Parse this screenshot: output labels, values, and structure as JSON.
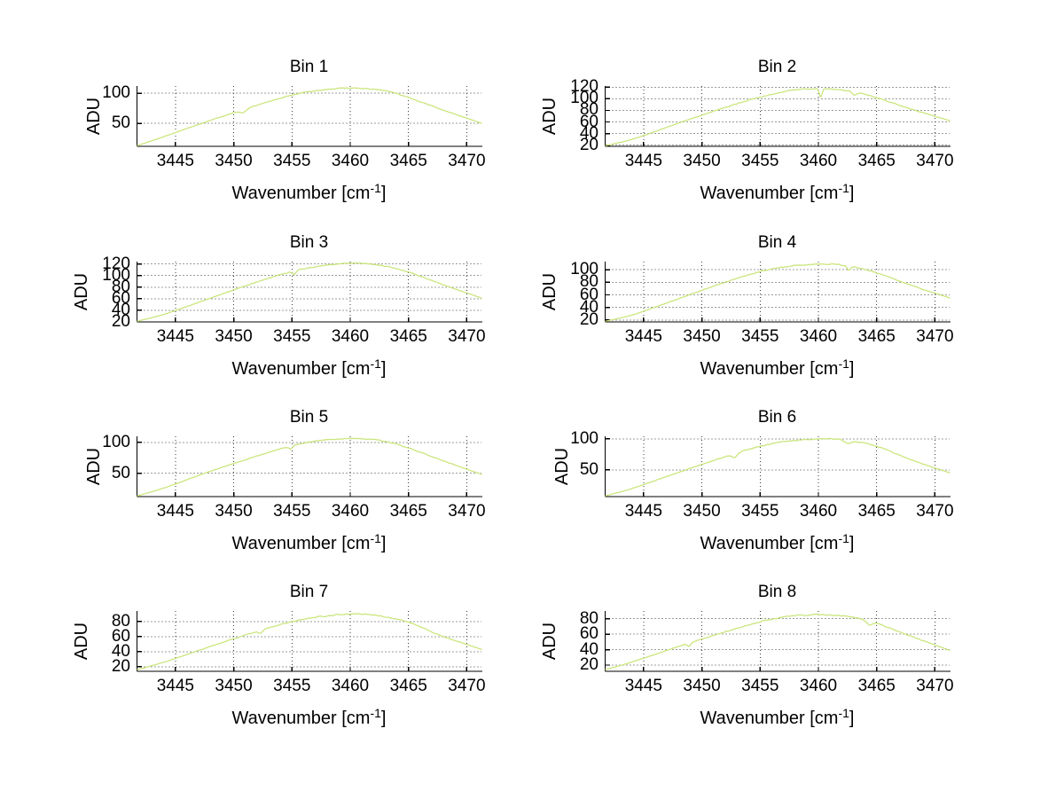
{
  "figure": {
    "background": "#ffffff",
    "axis_color": "#000000",
    "grid_color": "#3a3a3a",
    "panel_count": 8
  },
  "chart_data": [
    {
      "type": "line",
      "title": "Bin 1",
      "ylabel": "ADU",
      "xlabel_parts": {
        "base": "Wavenumber [cm",
        "sup": "-1",
        "end": "]"
      },
      "xlim": [
        3441.7,
        3471.3
      ],
      "ylim": [
        12,
        112
      ],
      "xticks": [
        3445,
        3450,
        3455,
        3460,
        3465,
        3470
      ],
      "yticks": [
        50,
        100
      ],
      "grid": true,
      "line_color": "#cbe57d",
      "anchors": {
        "x": [
          3441.7,
          3444,
          3448,
          3452,
          3455,
          3457,
          3459,
          3461,
          3463,
          3465,
          3468,
          3471.3
        ],
        "y": [
          13,
          28,
          55,
          80,
          97,
          104,
          108,
          108,
          104,
          93,
          72,
          50
        ]
      },
      "dips": [
        {
          "x": 3450.8,
          "depth": 5,
          "width": 0.35
        }
      ],
      "noise_amp": 1.3,
      "seed": 1
    },
    {
      "type": "line",
      "title": "Bin 2",
      "ylabel": "ADU",
      "xlabel_parts": {
        "base": "Wavenumber [cm",
        "sup": "-1",
        "end": "]"
      },
      "xlim": [
        3441.7,
        3471.3
      ],
      "ylim": [
        18,
        122
      ],
      "xticks": [
        3445,
        3450,
        3455,
        3460,
        3465,
        3470
      ],
      "yticks": [
        20,
        40,
        60,
        80,
        100,
        120
      ],
      "grid": true,
      "line_color": "#cbe57d",
      "anchors": {
        "x": [
          3441.7,
          3444,
          3448,
          3452,
          3455,
          3457,
          3459,
          3461,
          3463,
          3465,
          3468,
          3471.3
        ],
        "y": [
          19,
          30,
          58,
          85,
          103,
          112,
          117,
          117,
          112,
          102,
          82,
          62
        ]
      },
      "dips": [
        {
          "x": 3460.2,
          "depth": 14,
          "width": 0.18
        },
        {
          "x": 3463.1,
          "depth": 5,
          "width": 0.25
        }
      ],
      "noise_amp": 1.4,
      "seed": 2
    },
    {
      "type": "line",
      "title": "Bin 3",
      "ylabel": "ADU",
      "xlabel_parts": {
        "base": "Wavenumber [cm",
        "sup": "-1",
        "end": "]"
      },
      "xlim": [
        3441.7,
        3471.3
      ],
      "ylim": [
        20,
        124
      ],
      "xticks": [
        3445,
        3450,
        3455,
        3460,
        3465,
        3470
      ],
      "yticks": [
        20,
        40,
        60,
        80,
        100,
        120
      ],
      "grid": true,
      "line_color": "#cbe57d",
      "anchors": {
        "x": [
          3441.7,
          3444,
          3448,
          3452,
          3455,
          3457,
          3459,
          3461,
          3463,
          3465,
          3468,
          3471.3
        ],
        "y": [
          21,
          33,
          61,
          89,
          107,
          115,
          120,
          121,
          116,
          106,
          84,
          61
        ]
      },
      "dips": [
        {
          "x": 3455.2,
          "depth": 6,
          "width": 0.2
        }
      ],
      "noise_amp": 1.4,
      "seed": 3
    },
    {
      "type": "line",
      "title": "Bin 4",
      "ylabel": "ADU",
      "xlabel_parts": {
        "base": "Wavenumber [cm",
        "sup": "-1",
        "end": "]"
      },
      "xlim": [
        3441.7,
        3471.3
      ],
      "ylim": [
        17,
        113
      ],
      "xticks": [
        3445,
        3450,
        3455,
        3460,
        3465,
        3470
      ],
      "yticks": [
        20,
        40,
        60,
        80,
        100
      ],
      "grid": true,
      "line_color": "#cbe57d",
      "anchors": {
        "x": [
          3441.7,
          3444,
          3448,
          3452,
          3455,
          3457,
          3459,
          3461,
          3463,
          3465,
          3468,
          3471.3
        ],
        "y": [
          18,
          28,
          54,
          80,
          97,
          104,
          108,
          109,
          105,
          95,
          75,
          55
        ]
      },
      "dips": [
        {
          "x": 3462.6,
          "depth": 7,
          "width": 0.22
        }
      ],
      "noise_amp": 1.3,
      "seed": 4
    },
    {
      "type": "line",
      "title": "Bin 5",
      "ylabel": "ADU",
      "xlabel_parts": {
        "base": "Wavenumber [cm",
        "sup": "-1",
        "end": "]"
      },
      "xlim": [
        3441.7,
        3471.3
      ],
      "ylim": [
        12,
        110
      ],
      "xticks": [
        3445,
        3450,
        3455,
        3460,
        3465,
        3470
      ],
      "yticks": [
        50,
        100
      ],
      "grid": true,
      "line_color": "#cbe57d",
      "anchors": {
        "x": [
          3441.7,
          3444,
          3448,
          3452,
          3455,
          3457,
          3459,
          3461,
          3463,
          3465,
          3468,
          3471.3
        ],
        "y": [
          13,
          26,
          53,
          78,
          95,
          102,
          106,
          106,
          102,
          91,
          70,
          48
        ]
      },
      "dips": [
        {
          "x": 3454.9,
          "depth": 5,
          "width": 0.25
        }
      ],
      "noise_amp": 1.3,
      "seed": 5
    },
    {
      "type": "line",
      "title": "Bin 6",
      "ylabel": "ADU",
      "xlabel_parts": {
        "base": "Wavenumber [cm",
        "sup": "-1",
        "end": "]"
      },
      "xlim": [
        3441.7,
        3471.3
      ],
      "ylim": [
        7,
        104
      ],
      "xticks": [
        3445,
        3450,
        3455,
        3460,
        3465,
        3470
      ],
      "yticks": [
        50,
        100
      ],
      "grid": true,
      "line_color": "#cbe57d",
      "anchors": {
        "x": [
          3441.7,
          3444,
          3448,
          3452,
          3455,
          3457,
          3459,
          3461,
          3463,
          3465,
          3468,
          3471.3
        ],
        "y": [
          8,
          20,
          46,
          71,
          88,
          95,
          99,
          100,
          96,
          88,
          66,
          45
        ]
      },
      "dips": [
        {
          "x": 3452.8,
          "depth": 6,
          "width": 0.3
        },
        {
          "x": 3462.5,
          "depth": 5,
          "width": 0.4
        }
      ],
      "noise_amp": 1.4,
      "seed": 6
    },
    {
      "type": "line",
      "title": "Bin 7",
      "ylabel": "ADU",
      "xlabel_parts": {
        "base": "Wavenumber [cm",
        "sup": "-1",
        "end": "]"
      },
      "xlim": [
        3441.7,
        3471.3
      ],
      "ylim": [
        14,
        94
      ],
      "xticks": [
        3445,
        3450,
        3455,
        3460,
        3465,
        3470
      ],
      "yticks": [
        20,
        40,
        60,
        80
      ],
      "grid": true,
      "line_color": "#cbe57d",
      "anchors": {
        "x": [
          3441.7,
          3444,
          3448,
          3452,
          3455,
          3457,
          3459,
          3461,
          3463,
          3465,
          3468,
          3471.3
        ],
        "y": [
          16,
          26,
          47,
          67,
          80,
          86,
          89,
          90,
          86,
          79,
          60,
          43
        ]
      },
      "dips": [
        {
          "x": 3452.3,
          "depth": 4,
          "width": 0.25
        }
      ],
      "noise_amp": 1.3,
      "seed": 7
    },
    {
      "type": "line",
      "title": "Bin 8",
      "ylabel": "ADU",
      "xlabel_parts": {
        "base": "Wavenumber [cm",
        "sup": "-1",
        "end": "]"
      },
      "xlim": [
        3441.7,
        3471.3
      ],
      "ylim": [
        12,
        90
      ],
      "xticks": [
        3445,
        3450,
        3455,
        3460,
        3465,
        3470
      ],
      "yticks": [
        20,
        40,
        60,
        80
      ],
      "grid": true,
      "line_color": "#cbe57d",
      "anchors": {
        "x": [
          3441.7,
          3444,
          3448,
          3452,
          3455,
          3457,
          3459,
          3461,
          3463,
          3465,
          3468,
          3471.3
        ],
        "y": [
          14,
          24,
          44,
          63,
          76,
          82,
          85,
          85,
          82,
          74,
          57,
          39
        ]
      },
      "dips": [
        {
          "x": 3448.9,
          "depth": 4,
          "width": 0.2
        },
        {
          "x": 3464.4,
          "depth": 5,
          "width": 0.3
        }
      ],
      "noise_amp": 1.3,
      "seed": 8
    }
  ]
}
